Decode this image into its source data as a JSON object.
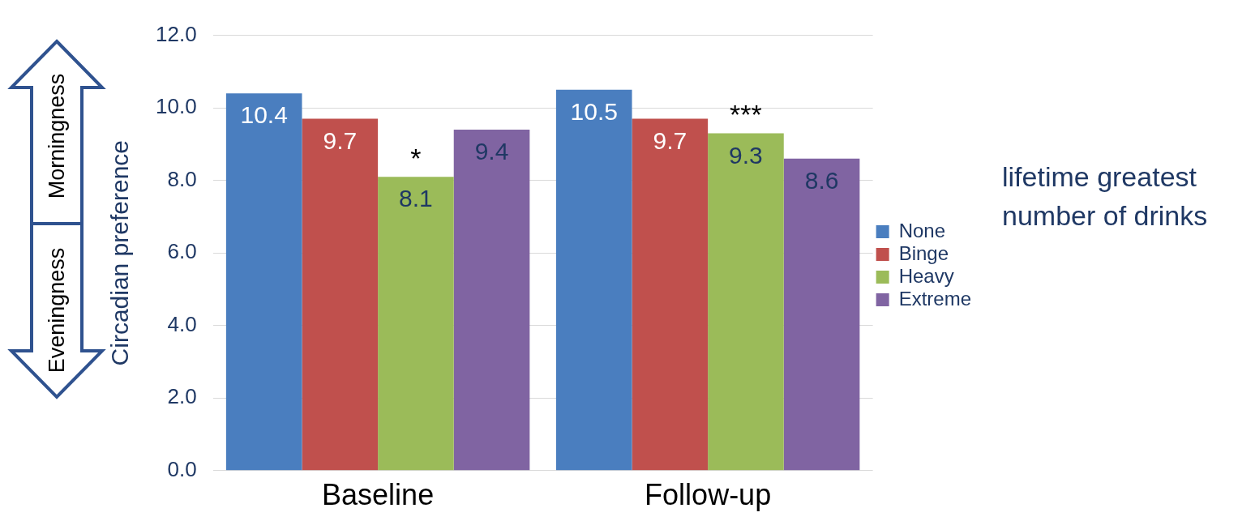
{
  "chart_data": {
    "type": "bar",
    "ylabel": "Circadian preference",
    "legend_title": "lifetime greatest number of drinks",
    "categories": [
      "Baseline",
      "Follow-up"
    ],
    "series": [
      {
        "name": "None",
        "color": "#4a7ebf",
        "values": [
          10.4,
          10.5
        ]
      },
      {
        "name": "Binge",
        "color": "#c0504d",
        "values": [
          9.7,
          9.7
        ]
      },
      {
        "name": "Heavy",
        "color": "#9bbb59",
        "values": [
          8.1,
          9.3
        ]
      },
      {
        "name": "Extreme",
        "color": "#8064a2",
        "values": [
          9.4,
          8.6
        ]
      }
    ],
    "ylim": [
      0,
      12
    ],
    "yticks": [
      {
        "value": 0,
        "label": "0.0"
      },
      {
        "value": 2,
        "label": "2.0"
      },
      {
        "value": 4,
        "label": "4.0"
      },
      {
        "value": 6,
        "label": "6.0"
      },
      {
        "value": 8,
        "label": "8.0"
      },
      {
        "value": 10,
        "label": "10.0"
      },
      {
        "value": 12,
        "label": "12.0"
      }
    ],
    "grid": "y",
    "legend": "right",
    "data_labels": true,
    "annotations": [
      {
        "text": "*",
        "x": "Baseline",
        "y": 8.1
      },
      {
        "text": "***",
        "x": "Follow-up",
        "y": 9.3
      },
      "Morningness",
      "Eveningness"
    ]
  }
}
